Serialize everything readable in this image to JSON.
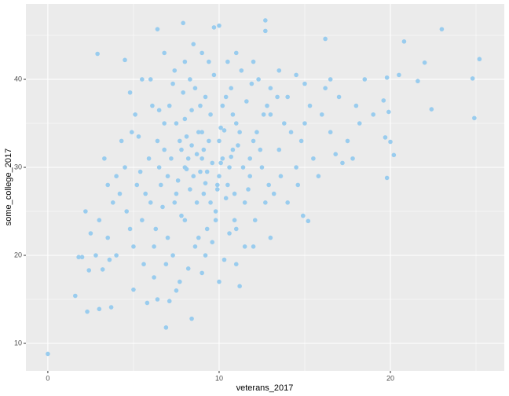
{
  "chart_data": {
    "type": "scatter",
    "x_label": "veterans_2017",
    "y_label": "some_college_2017",
    "color": "#99ccee",
    "grid": true,
    "xlim": [
      -1.28,
      26.65
    ],
    "ylim": [
      6.875,
      48.57
    ],
    "xticks": [
      0,
      10,
      20
    ],
    "yticks": [
      10,
      20,
      30,
      40
    ],
    "x": [
      0,
      1.6,
      2.3,
      3,
      3.7,
      2.9,
      4.5,
      6.4,
      7.9,
      9.7,
      10,
      12.7,
      12.7,
      16.2,
      20.8,
      23,
      25.2,
      24.8,
      24.9,
      22.4,
      21.6,
      22,
      19.8,
      19.6,
      19.9,
      20.2,
      19.8,
      20,
      19.7,
      6.9,
      8.4,
      5.8,
      6.4,
      7.1,
      5,
      15.2,
      11.2,
      2,
      2.4,
      3.2,
      9,
      8.5,
      10,
      7.5,
      11,
      9.5,
      8,
      10.5,
      6.5,
      12,
      9.2,
      7,
      11.5,
      8.8,
      10.2,
      6,
      13,
      9.8,
      7.8,
      12.5,
      5.5,
      14,
      8.3,
      10.7,
      6.8,
      11.8,
      9.1,
      7.3,
      13.5,
      4.8,
      15,
      8.6,
      10.9,
      5.9,
      12.8,
      9.4,
      7.1,
      11.3,
      6.2,
      14.5,
      4.2,
      16,
      8.9,
      10.1,
      7.6,
      11.1,
      9.6,
      8.1,
      10.4,
      6.7,
      12.2,
      9.3,
      7.9,
      11.6,
      5.2,
      13.2,
      8.4,
      10.6,
      6.4,
      12.9,
      3.5,
      17,
      9.7,
      8.2,
      10.3,
      5.6,
      14.8,
      7.4,
      11.9,
      4.5,
      15.5,
      9,
      7.7,
      12.1,
      6.1,
      13.8,
      8.7,
      10.8,
      5.3,
      16.5,
      3,
      18,
      9.9,
      8,
      10,
      9,
      7.2,
      11.4,
      6.6,
      12.4,
      4,
      17.5,
      8.5,
      10.5,
      2.5,
      19,
      6,
      14,
      3.8,
      16.8,
      9.5,
      8.8,
      10.4,
      7.5,
      11.7,
      6.3,
      12.6,
      5,
      13.6,
      4.6,
      15.3,
      9.2,
      7,
      11,
      8.6,
      10.8,
      6.9,
      12.3,
      5.7,
      14.2,
      2.2,
      18.5,
      9.4,
      8.3,
      10.2,
      7.8,
      11.2,
      6.5,
      13,
      4.9,
      15.8,
      9.6,
      7.3,
      11.5,
      8,
      10.6,
      5.4,
      14.6,
      3.3,
      17.2,
      9.1,
      8.9,
      9.8,
      8.2,
      10.9,
      7.4,
      11.8,
      6.8,
      12.7,
      5.1,
      13.4,
      4.3,
      16.2,
      3.6,
      20.5,
      18.2,
      17.8,
      14.9,
      16.5,
      15,
      6.2,
      7.5,
      9,
      10,
      11,
      12,
      13,
      4,
      3.5,
      4.8,
      5.5,
      6.8,
      8,
      11,
      12,
      13.5,
      14.5,
      2.8,
      1.8,
      8.7,
      9.3,
      10.1,
      8.4,
      9.9,
      7.7,
      10.7,
      9.2,
      8.1,
      10.3
    ],
    "values": [
      8.8,
      15.4,
      13.6,
      13.9,
      14.1,
      42.9,
      42.2,
      45.7,
      46.4,
      45.9,
      46.1,
      46.7,
      45.5,
      44.6,
      44.3,
      45.7,
      42.3,
      40.1,
      35.6,
      36.6,
      39.8,
      41.9,
      40.2,
      37.6,
      36.3,
      31.4,
      28.8,
      32.9,
      33.4,
      11.8,
      12.8,
      14.6,
      15,
      14.8,
      16.1,
      23.9,
      16.5,
      19.8,
      18.3,
      18.4,
      31,
      29,
      33,
      27,
      35,
      36,
      24,
      28,
      30,
      33,
      38,
      22,
      26,
      34,
      31,
      26,
      36,
      25,
      32,
      30,
      24,
      38,
      40,
      39,
      35,
      29,
      27,
      20,
      32,
      23,
      35,
      21,
      24,
      31,
      37,
      42,
      37,
      41,
      21,
      30,
      27,
      36,
      29.5,
      34.5,
      28.5,
      32.5,
      30.5,
      33.5,
      26.5,
      25.5,
      34,
      23,
      38.5,
      37.5,
      28,
      27,
      36.5,
      22.5,
      33,
      28,
      22,
      38,
      40.5,
      18.5,
      19.5,
      19,
      33,
      41,
      39.5,
      30,
      31,
      43,
      17,
      24,
      37,
      35,
      26,
      36,
      33.5,
      34,
      24,
      37,
      28,
      30,
      29,
      34,
      31,
      30,
      28,
      32,
      20,
      33,
      44,
      42,
      22.5,
      36,
      40,
      26,
      26,
      31.5,
      26,
      22,
      38,
      35,
      27.5,
      23,
      36,
      21,
      29,
      25,
      37,
      20,
      29,
      23,
      39,
      32,
      19,
      40,
      27,
      34,
      25,
      40,
      33,
      27.5,
      37,
      24.5,
      34,
      36.5,
      39,
      34,
      29,
      21.5,
      39.5,
      21,
      35.5,
      30,
      29.5,
      28,
      31,
      30.5,
      32,
      37,
      24,
      31,
      27,
      26,
      31,
      32,
      26,
      36,
      38,
      33,
      39,
      19.5,
      40.5,
      35,
      31,
      24.5,
      40,
      39.5,
      17.5,
      16,
      18,
      17,
      19,
      21,
      22,
      29,
      28,
      38.5,
      40,
      43,
      42,
      43,
      42,
      41,
      40.5,
      20,
      19.8,
      31.5,
      29.5,
      30.5,
      32.5,
      27.5,
      33,
      31.2,
      28.2,
      29.8,
      34.2
    ]
  }
}
